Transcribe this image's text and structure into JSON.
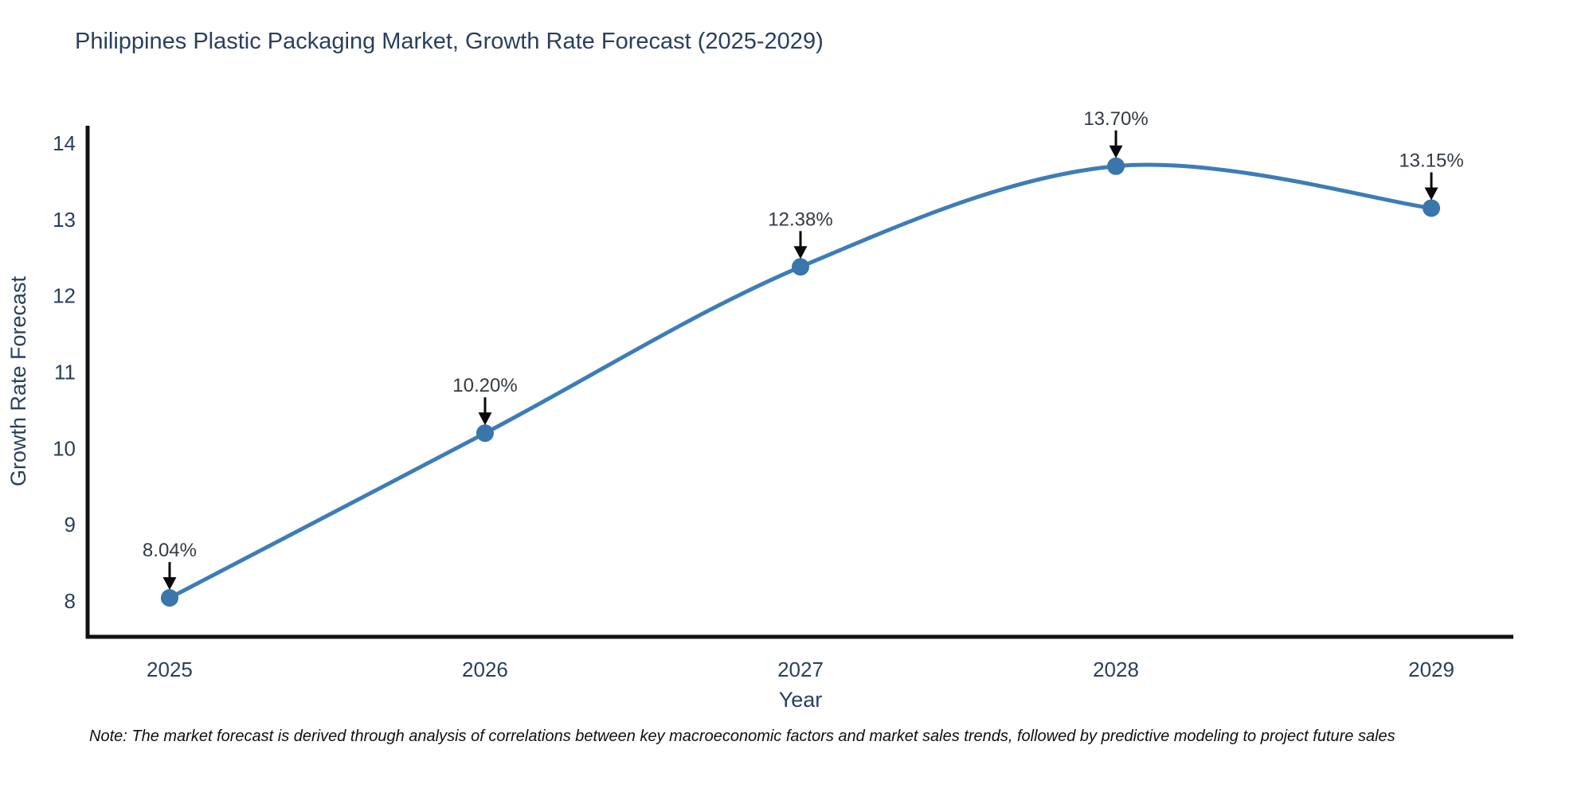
{
  "chart": {
    "title": "Philippines Plastic Packaging Market, Growth Rate Forecast (2025-2029)",
    "note": "Note: The market forecast is derived through analysis of correlations between key macroeconomic factors and market sales trends, followed by predictive modeling to project future sales"
  },
  "chart_data": {
    "type": "line",
    "title": "Philippines Plastic Packaging Market, Growth Rate Forecast (2025-2029)",
    "xlabel": "Year",
    "ylabel": "Growth Rate Forecast",
    "x": [
      2025,
      2026,
      2027,
      2028,
      2029
    ],
    "values": [
      8.04,
      10.2,
      12.38,
      13.7,
      13.15
    ],
    "point_labels": [
      "8.04%",
      "10.20%",
      "12.38%",
      "13.70%",
      "13.15%"
    ],
    "xticks": [
      "2025",
      "2026",
      "2027",
      "2028",
      "2029"
    ],
    "yticks": [
      8,
      9,
      10,
      11,
      12,
      13,
      14
    ],
    "xlim": [
      2024.74,
      2029.26
    ],
    "ylim": [
      7.53,
      14.23
    ],
    "line_shape": "spline",
    "grid": false,
    "legend": false,
    "colors": {
      "line": "#3d7db6",
      "marker": "#3876ab",
      "axis": "#111111",
      "text": "#2a3f5f",
      "annotation": "#333a45",
      "arrow": "#0a0a0a"
    }
  }
}
